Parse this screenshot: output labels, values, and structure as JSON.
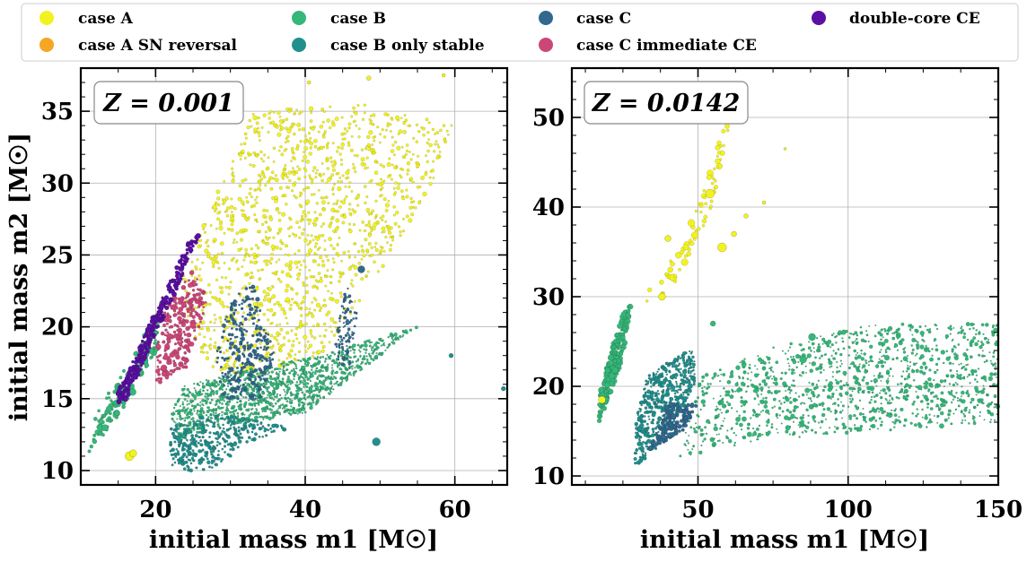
{
  "legend": {
    "items": [
      {
        "label": "case A",
        "color": "#f2f21f"
      },
      {
        "label": "case A SN reversal",
        "color": "#f5a623"
      },
      {
        "label": "case B",
        "color": "#35b779"
      },
      {
        "label": "case B only stable",
        "color": "#21908d"
      },
      {
        "label": "case C",
        "color": "#31688e"
      },
      {
        "label": "case C immediate CE",
        "color": "#cc4778"
      },
      {
        "label": "double-core CE",
        "color": "#5b0fa3"
      }
    ]
  },
  "chart_data": [
    {
      "type": "scatter",
      "annotation": "Z = 0.001",
      "xlabel": "initial mass m1 [M☉]",
      "ylabel": "initial mass m2 [M☉]",
      "xlim": [
        10,
        67
      ],
      "ylim": [
        9,
        38
      ],
      "xticks": [
        20,
        40,
        60
      ],
      "yticks": [
        10,
        15,
        20,
        25,
        30,
        35
      ],
      "grid": true,
      "regions": [
        {
          "series": "case A",
          "polygon": [
            [
              23,
              23
            ],
            [
              33,
              35
            ],
            [
              48,
              35.5
            ],
            [
              60,
              34
            ],
            [
              57,
              30
            ],
            [
              48,
              22
            ],
            [
              42,
              18
            ],
            [
              30,
              16
            ],
            [
              26,
              18
            ]
          ],
          "n": 1400,
          "size": [
            1.2,
            2.6
          ]
        },
        {
          "series": "case B",
          "polygon": [
            [
              23,
              12
            ],
            [
              28,
              13
            ],
            [
              40,
              14
            ],
            [
              50,
              18
            ],
            [
              55,
              20
            ],
            [
              48,
              19
            ],
            [
              42,
              18
            ],
            [
              32,
              17
            ],
            [
              24,
              16
            ],
            [
              22,
              14
            ]
          ],
          "n": 1400,
          "size": [
            0.9,
            2.2
          ]
        },
        {
          "series": "case B",
          "polygon": [
            [
              11,
              11
            ],
            [
              14,
              13
            ],
            [
              20,
              18
            ],
            [
              21,
              22
            ],
            [
              17,
              18
            ],
            [
              12,
              14
            ]
          ],
          "n": 150,
          "size": [
            1.5,
            4.5
          ]
        },
        {
          "series": "case B only stable",
          "polygon": [
            [
              22,
              10
            ],
            [
              27,
              10
            ],
            [
              33,
              12
            ],
            [
              38,
              13
            ],
            [
              28,
              14
            ],
            [
              22,
              13
            ]
          ],
          "n": 350,
          "size": [
            1.2,
            2.6
          ]
        },
        {
          "series": "case C",
          "polygon": [
            [
              29,
              15
            ],
            [
              34,
              15
            ],
            [
              36,
              18
            ],
            [
              33,
              23
            ],
            [
              30,
              22
            ],
            [
              28,
              18
            ]
          ],
          "n": 300,
          "size": [
            1.2,
            2.6
          ]
        },
        {
          "series": "case C",
          "polygon": [
            [
              44,
              17
            ],
            [
              46,
              17
            ],
            [
              47,
              21
            ],
            [
              45.5,
              23
            ],
            [
              44,
              19
            ]
          ],
          "n": 110,
          "size": [
            0.9,
            2.0
          ]
        },
        {
          "series": "case C immediate CE",
          "polygon": [
            [
              20,
              16
            ],
            [
              24,
              17
            ],
            [
              27,
              22
            ],
            [
              25,
              24
            ],
            [
              21,
              21
            ],
            [
              20,
              18
            ]
          ],
          "n": 260,
          "size": [
            1.2,
            3.6
          ]
        },
        {
          "series": "double-core CE",
          "polygon": [
            [
              15,
              14.5
            ],
            [
              16,
              14.8
            ],
            [
              24,
              24
            ],
            [
              26,
              26.5
            ],
            [
              24.5,
              26
            ],
            [
              15,
              15.5
            ]
          ],
          "n": 320,
          "size": [
            1.4,
            3.4
          ]
        }
      ],
      "points": [
        {
          "series": "case C",
          "x": 47.5,
          "y": 24,
          "r": 4
        },
        {
          "series": "case B only stable",
          "x": 49.5,
          "y": 12,
          "r": 4.5
        },
        {
          "series": "case B only stable",
          "x": 59.5,
          "y": 18,
          "r": 2.5
        },
        {
          "series": "case B only stable",
          "x": 66.5,
          "y": 15.7,
          "r": 2.5
        },
        {
          "series": "case A",
          "x": 16.5,
          "y": 11,
          "r": 5
        },
        {
          "series": "case A",
          "x": 17,
          "y": 11.2,
          "r": 4
        },
        {
          "series": "case A",
          "x": 40.5,
          "y": 37,
          "r": 2
        },
        {
          "series": "case A",
          "x": 48.5,
          "y": 37.3,
          "r": 2.5
        },
        {
          "series": "case A",
          "x": 58.5,
          "y": 37.5,
          "r": 2
        }
      ]
    },
    {
      "type": "scatter",
      "annotation": "Z = 0.0142",
      "xlabel": "initial mass m1 [M☉]",
      "ylabel": "",
      "xlim": [
        8,
        150
      ],
      "ylim": [
        9,
        55.5
      ],
      "xticks": [
        50,
        100,
        150
      ],
      "yticks": [
        10,
        20,
        30,
        40,
        50
      ],
      "grid": true,
      "regions": [
        {
          "series": "case B",
          "polygon": [
            [
              17,
              16
            ],
            [
              24,
              22
            ],
            [
              28,
              29
            ],
            [
              26,
              29
            ],
            [
              22,
              25
            ],
            [
              17,
              19
            ]
          ],
          "n": 260,
          "size": [
            1.5,
            4.0
          ]
        },
        {
          "series": "case B only stable",
          "polygon": [
            [
              29,
              11
            ],
            [
              36,
              13
            ],
            [
              44,
              17
            ],
            [
              50,
              21
            ],
            [
              48,
              24
            ],
            [
              40,
              23
            ],
            [
              33,
              21
            ],
            [
              29,
              16
            ]
          ],
          "n": 500,
          "size": [
            1.0,
            3.0
          ]
        },
        {
          "series": "case B",
          "polygon": [
            [
              44,
              12
            ],
            [
              70,
              14
            ],
            [
              110,
              15
            ],
            [
              150,
              16
            ],
            [
              150,
              27
            ],
            [
              110,
              27
            ],
            [
              80,
              25
            ],
            [
              50,
              21
            ]
          ],
          "n": 1300,
          "size": [
            0.8,
            3.0
          ]
        },
        {
          "series": "case A",
          "polygon": [
            [
              30,
              29
            ],
            [
              45,
              36
            ],
            [
              55,
              45
            ],
            [
              58,
              50
            ],
            [
              62,
              52
            ],
            [
              55,
              40
            ],
            [
              40,
              30
            ]
          ],
          "n": 80,
          "size": [
            1.5,
            4.5
          ]
        },
        {
          "series": "case C",
          "polygon": [
            [
              34,
              13
            ],
            [
              45,
              15
            ],
            [
              50,
              18
            ],
            [
              40,
              18
            ]
          ],
          "n": 140,
          "size": [
            1.5,
            3.5
          ]
        }
      ],
      "points": [
        {
          "series": "case A",
          "x": 54,
          "y": 41.5,
          "r": 5
        },
        {
          "series": "case A",
          "x": 58,
          "y": 35.5,
          "r": 5
        },
        {
          "series": "case A",
          "x": 62,
          "y": 37,
          "r": 3
        },
        {
          "series": "case A",
          "x": 66,
          "y": 39,
          "r": 2.5
        },
        {
          "series": "case A",
          "x": 40,
          "y": 36.5,
          "r": 3.5
        },
        {
          "series": "case A",
          "x": 38,
          "y": 30,
          "r": 4
        },
        {
          "series": "case A",
          "x": 72,
          "y": 40.5,
          "r": 2
        },
        {
          "series": "case A",
          "x": 79,
          "y": 46.5,
          "r": 1.5
        },
        {
          "series": "case A",
          "x": 57,
          "y": 49.5,
          "r": 2
        },
        {
          "series": "case A",
          "x": 18,
          "y": 18.5,
          "r": 4
        },
        {
          "series": "case B",
          "x": 88,
          "y": 25.5,
          "r": 4
        },
        {
          "series": "case B",
          "x": 55,
          "y": 27,
          "r": 3
        },
        {
          "series": "case B",
          "x": 85,
          "y": 23,
          "r": 4
        }
      ]
    }
  ]
}
